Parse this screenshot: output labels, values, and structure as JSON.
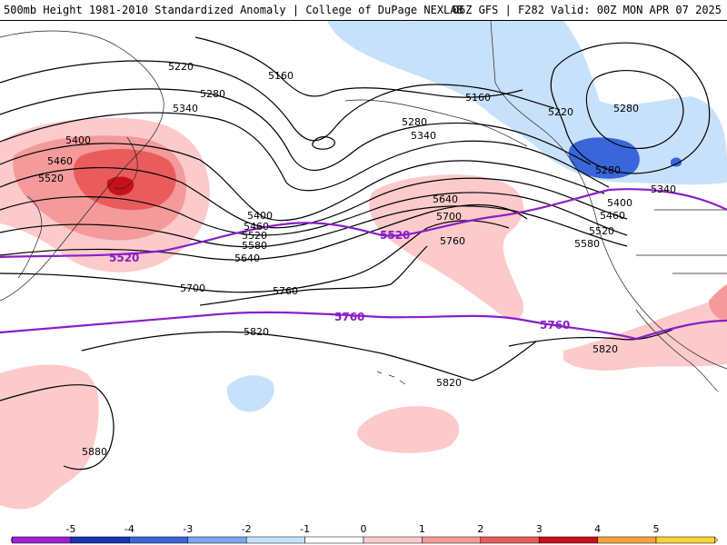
{
  "header": {
    "left_title": "500mb Height 1981-2010 Standardized Anomaly | College of DuPage NEXLAB",
    "right_title": "06Z GFS | F282 Valid: 00Z MON APR 07 2025"
  },
  "contour_labels": {
    "l5220_w": "5220",
    "l5160_w": "5160",
    "l5280_w": "5280",
    "l5340_w": "5340",
    "l5400_w": "5400",
    "l5460_w": "5460",
    "l5520_w": "5520",
    "l5160_c": "5160",
    "l5280_c": "5280",
    "l5340_c": "5340",
    "l5220_ne": "5220",
    "l5280_ne": "5280",
    "l5280_e": "5280",
    "l5340_e": "5340",
    "l5400_e": "5400",
    "l5460_e": "5460",
    "l5520_e": "5520",
    "l5580_e": "5580",
    "l5400_mid": "5400",
    "l5460_mid": "5460",
    "l5520_mid": "5520",
    "l5580_mid": "5580",
    "l5640_mid": "5640",
    "l5640_c": "5640",
    "l5700_c": "5700",
    "l5760_c": "5760",
    "l5700_w": "5700",
    "l5760_w": "5760",
    "l5820_w": "5820",
    "l5820_c": "5820",
    "l5820_e": "5820",
    "l5880_sw": "5880"
  },
  "climo_labels": {
    "p5520_w": "5520",
    "p5520_c": "5520",
    "p5760_c": "5760",
    "p5760_e": "5760"
  },
  "colorbar": {
    "ticks": [
      "-5",
      "-4",
      "-3",
      "-2",
      "-1",
      "0",
      "1",
      "2",
      "3",
      "4",
      "5"
    ],
    "colors": [
      "#ff66ff",
      "#9e1fd6",
      "#1a33b3",
      "#3a66d9",
      "#7aa7ee",
      "#c8e1fb",
      "#ffffff",
      "#fccaca",
      "#f49a9a",
      "#ea5c5c",
      "#c8101a",
      "#f2a33c",
      "#ffd23a"
    ]
  },
  "colors": {
    "pos_weak": "#fccaca",
    "pos_mod": "#f49a9a",
    "pos_strong": "#ea5c5c",
    "pos_max": "#c8101a",
    "neg_weak": "#c8e1fb",
    "neg_mod": "#3a66d9",
    "climo_line": "#8a1fc8"
  }
}
